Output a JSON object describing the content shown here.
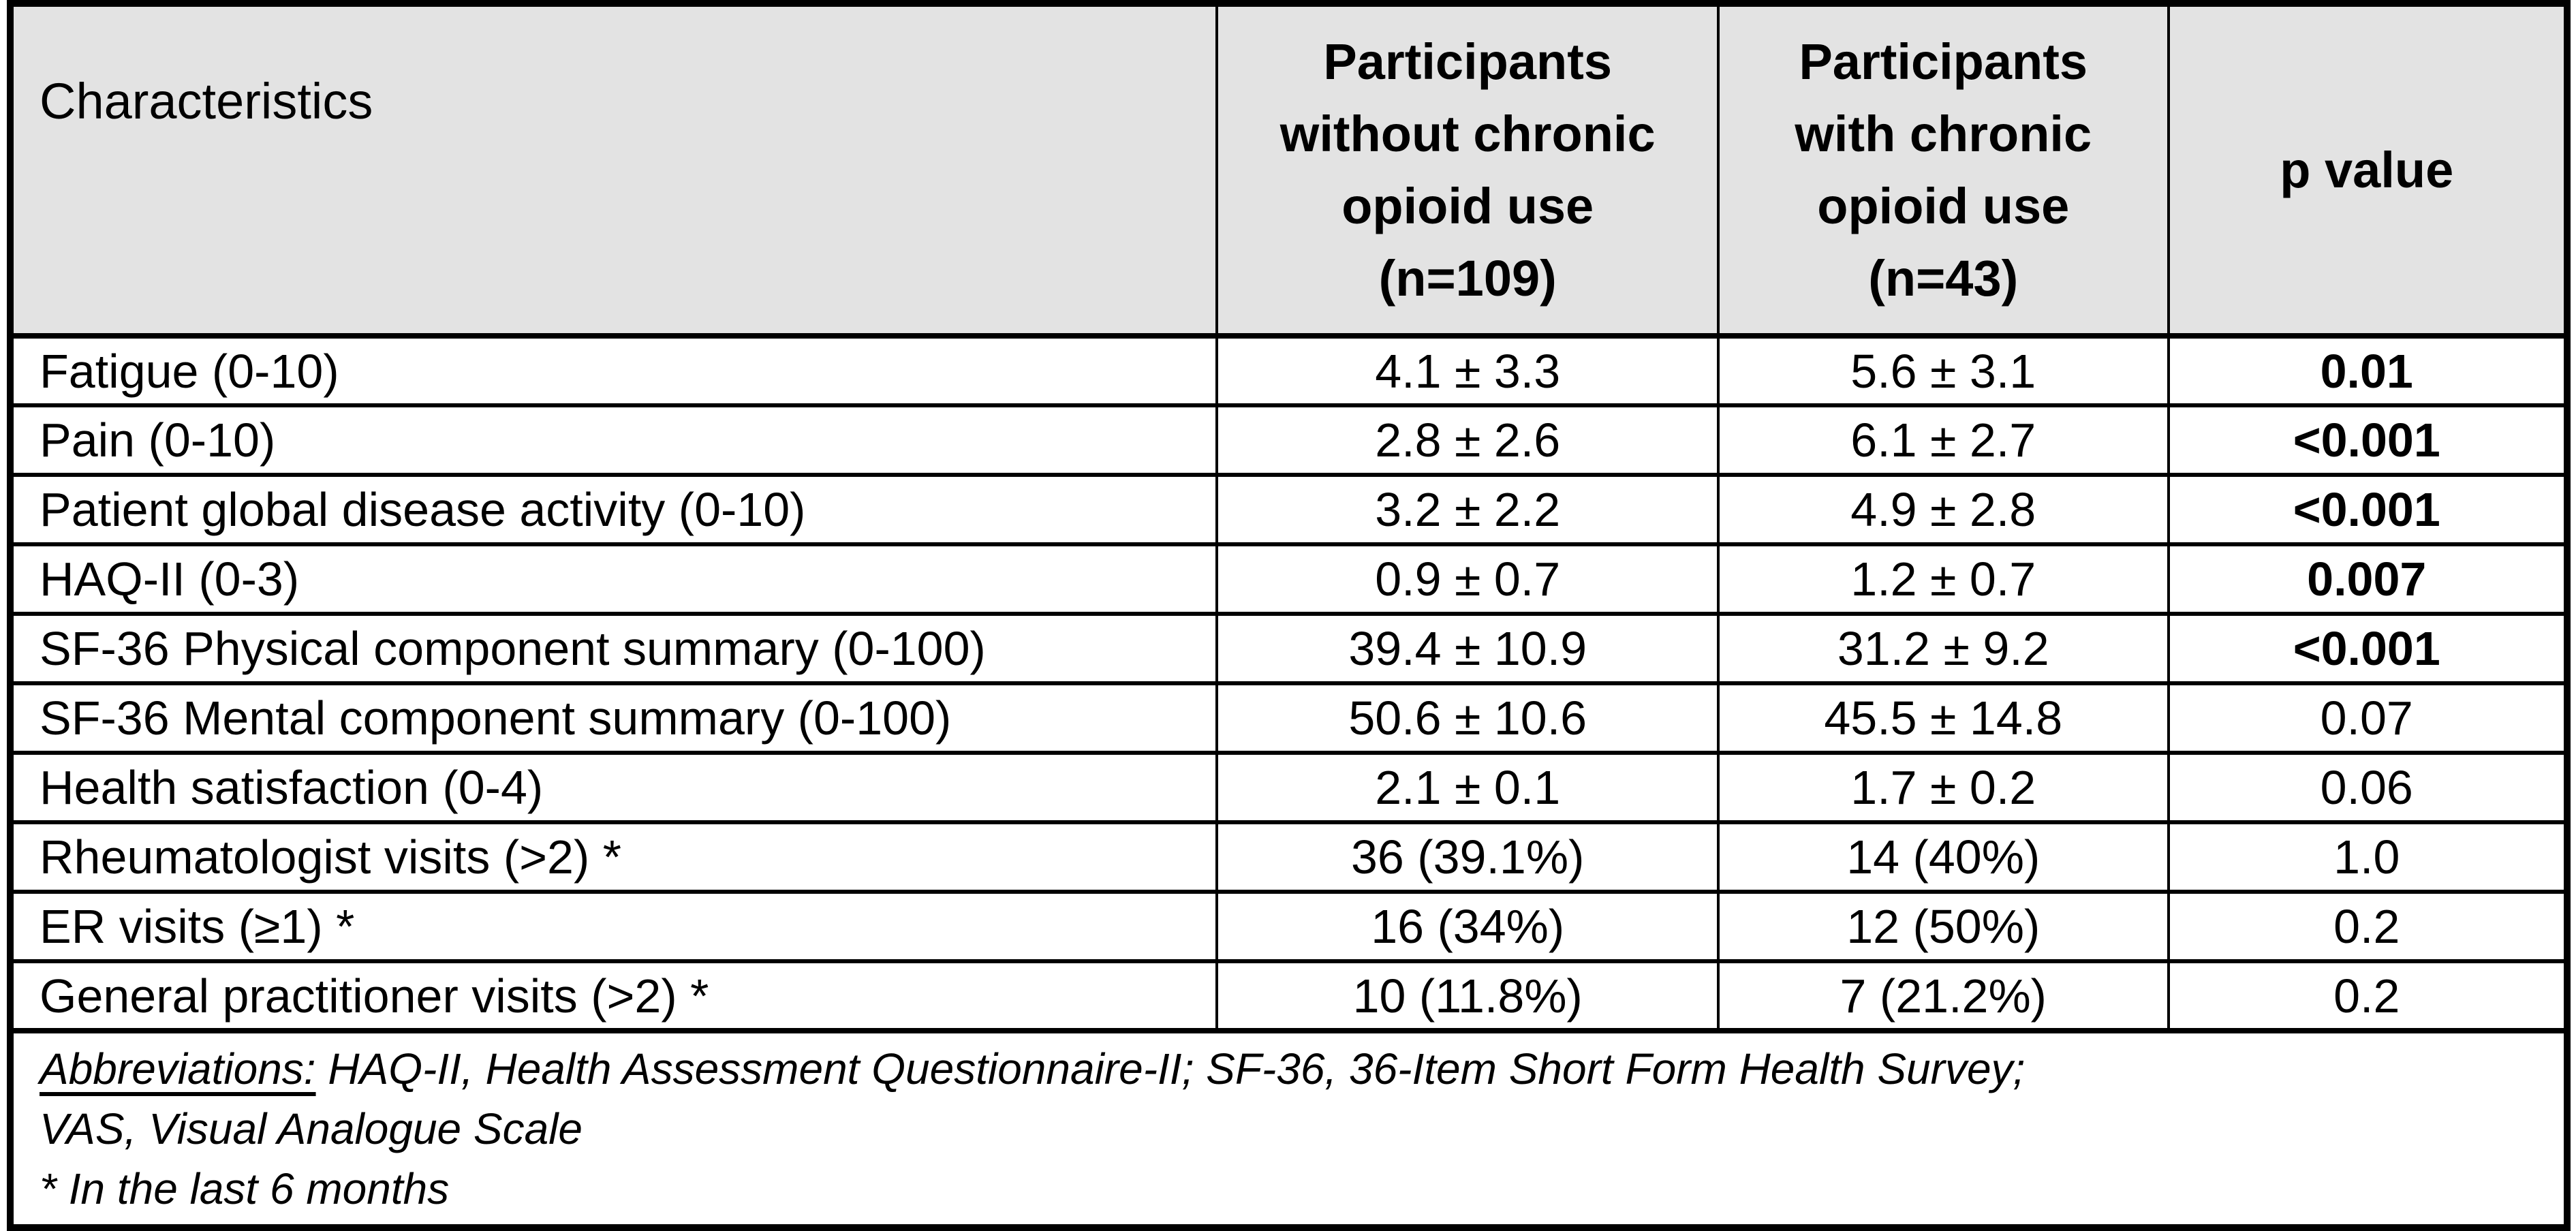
{
  "table": {
    "colors": {
      "header_bg": "#e3e3e3",
      "border": "#000000",
      "body_bg": "#ffffff",
      "text": "#000000"
    },
    "header": {
      "characteristics": "Characteristics",
      "col_without": "Participants\nwithout chronic\nopioid use\n(n=109)",
      "col_with": "Participants\nwith chronic\nopioid use\n(n=43)",
      "p_value": "p value"
    },
    "rows": [
      {
        "label": "Fatigue (0-10)",
        "without": "4.1 ± 3.3",
        "with": "5.6 ± 3.1",
        "p": "0.01",
        "p_bold": true
      },
      {
        "label": "Pain (0-10)",
        "without": "2.8 ± 2.6",
        "with": "6.1 ± 2.7",
        "p": "<0.001",
        "p_bold": true
      },
      {
        "label": "Patient global disease activity (0-10)",
        "without": "3.2 ± 2.2",
        "with": "4.9 ± 2.8",
        "p": "<0.001",
        "p_bold": true
      },
      {
        "label": "HAQ-II (0-3)",
        "without": "0.9 ± 0.7",
        "with": "1.2 ± 0.7",
        "p": "0.007",
        "p_bold": true
      },
      {
        "label": "SF-36 Physical component summary (0-100)",
        "without": "39.4 ± 10.9",
        "with": "31.2 ± 9.2",
        "p": "<0.001",
        "p_bold": true
      },
      {
        "label": "SF-36 Mental component summary (0-100)",
        "without": "50.6 ± 10.6",
        "with": "45.5 ± 14.8",
        "p": "0.07",
        "p_bold": false
      },
      {
        "label": "Health satisfaction (0-4)",
        "without": "2.1 ± 0.1",
        "with": "1.7 ± 0.2",
        "p": "0.06",
        "p_bold": false
      },
      {
        "label": "Rheumatologist visits (>2) *",
        "without": "36 (39.1%)",
        "with": "14 (40%)",
        "p": "1.0",
        "p_bold": false
      },
      {
        "label": "ER visits (≥1) *",
        "without": "16 (34%)",
        "with": "12 (50%)",
        "p": "0.2",
        "p_bold": false
      },
      {
        "label": "General practitioner visits (>2) *",
        "without": "10 (11.8%)",
        "with": "7 (21.2%)",
        "p": "0.2",
        "p_bold": false
      }
    ],
    "footnote": {
      "abbr_label": "Abbreviations:",
      "abbr_rest": " HAQ-II, Health Assessment Questionnaire-II; SF-36, 36-Item Short Form Health Survey;",
      "line2": "VAS, Visual Analogue Scale",
      "line3": "* In the last 6 months"
    }
  }
}
